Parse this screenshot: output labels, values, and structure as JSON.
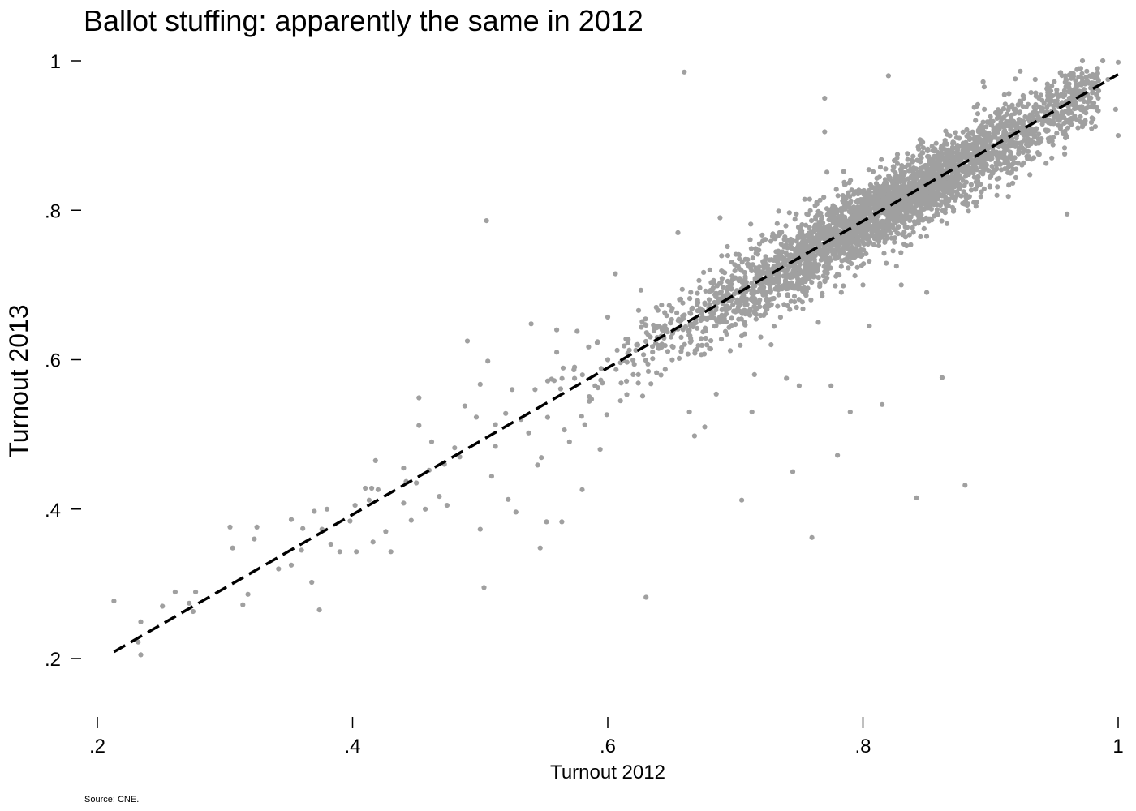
{
  "chart_data": {
    "type": "scatter",
    "title": "Ballot stuffing: apparently the same in 2012",
    "xlabel": "Turnout 2012",
    "ylabel": "Turnout 2013",
    "source": "Source: CNE.",
    "xlim": [
      0.2,
      1.0
    ],
    "ylim": [
      0.2,
      1.0
    ],
    "x_ticks": [
      0.2,
      0.4,
      0.6,
      0.8,
      1.0
    ],
    "x_tick_labels": [
      ".2",
      ".4",
      ".6",
      ".8",
      "1"
    ],
    "y_ticks": [
      0.2,
      0.4,
      0.6,
      0.8,
      1.0
    ],
    "y_tick_labels": [
      ".2",
      ".4",
      ".6",
      ".8",
      "1"
    ],
    "grid": false,
    "marker_color": "#a0a0a0",
    "fit_line_color": "#000000",
    "fit_line": {
      "style": "dashed",
      "points": [
        [
          0.213,
          0.209
        ],
        [
          1.0,
          0.982
        ]
      ]
    },
    "cloud": {
      "description": "dense main cloud along the diagonal; points concentrated around x 0.65–0.95",
      "slope": 0.98,
      "intercept": 0.0,
      "noise_sd": 0.025,
      "count": 3400,
      "x_center": 0.82,
      "x_spread": 0.085
    },
    "points": [
      [
        0.213,
        0.277
      ],
      [
        0.232,
        0.222
      ],
      [
        0.234,
        0.249
      ],
      [
        0.234,
        0.205
      ],
      [
        0.251,
        0.27
      ],
      [
        0.261,
        0.289
      ],
      [
        0.272,
        0.274
      ],
      [
        0.275,
        0.263
      ],
      [
        0.277,
        0.289
      ],
      [
        0.304,
        0.376
      ],
      [
        0.306,
        0.348
      ],
      [
        0.314,
        0.272
      ],
      [
        0.318,
        0.286
      ],
      [
        0.323,
        0.36
      ],
      [
        0.325,
        0.376
      ],
      [
        0.342,
        0.32
      ],
      [
        0.352,
        0.386
      ],
      [
        0.352,
        0.325
      ],
      [
        0.36,
        0.345
      ],
      [
        0.361,
        0.374
      ],
      [
        0.368,
        0.302
      ],
      [
        0.37,
        0.397
      ],
      [
        0.374,
        0.265
      ],
      [
        0.376,
        0.373
      ],
      [
        0.38,
        0.4
      ],
      [
        0.383,
        0.353
      ],
      [
        0.39,
        0.343
      ],
      [
        0.398,
        0.384
      ],
      [
        0.402,
        0.405
      ],
      [
        0.403,
        0.343
      ],
      [
        0.41,
        0.428
      ],
      [
        0.413,
        0.412
      ],
      [
        0.415,
        0.428
      ],
      [
        0.416,
        0.356
      ],
      [
        0.418,
        0.465
      ],
      [
        0.42,
        0.426
      ],
      [
        0.426,
        0.37
      ],
      [
        0.43,
        0.343
      ],
      [
        0.44,
        0.455
      ],
      [
        0.44,
        0.408
      ],
      [
        0.442,
        0.437
      ],
      [
        0.446,
        0.385
      ],
      [
        0.45,
        0.435
      ],
      [
        0.452,
        0.512
      ],
      [
        0.452,
        0.549
      ],
      [
        0.457,
        0.4
      ],
      [
        0.46,
        0.452
      ],
      [
        0.462,
        0.49
      ],
      [
        0.468,
        0.417
      ],
      [
        0.472,
        0.46
      ],
      [
        0.474,
        0.405
      ],
      [
        0.48,
        0.482
      ],
      [
        0.484,
        0.47
      ],
      [
        0.488,
        0.538
      ],
      [
        0.49,
        0.625
      ],
      [
        0.497,
        0.523
      ],
      [
        0.5,
        0.567
      ],
      [
        0.5,
        0.373
      ],
      [
        0.503,
        0.295
      ],
      [
        0.505,
        0.786
      ],
      [
        0.506,
        0.598
      ],
      [
        0.509,
        0.444
      ],
      [
        0.512,
        0.484
      ],
      [
        0.512,
        0.513
      ],
      [
        0.52,
        0.528
      ],
      [
        0.522,
        0.413
      ],
      [
        0.525,
        0.56
      ],
      [
        0.528,
        0.396
      ],
      [
        0.532,
        0.52
      ],
      [
        0.538,
        0.502
      ],
      [
        0.54,
        0.648
      ],
      [
        0.543,
        0.56
      ],
      [
        0.545,
        0.459
      ],
      [
        0.547,
        0.348
      ],
      [
        0.548,
        0.469
      ],
      [
        0.552,
        0.383
      ],
      [
        0.556,
        0.574
      ],
      [
        0.558,
        0.572
      ],
      [
        0.56,
        0.61
      ],
      [
        0.56,
        0.64
      ],
      [
        0.564,
        0.383
      ],
      [
        0.566,
        0.506
      ],
      [
        0.57,
        0.49
      ],
      [
        0.574,
        0.59
      ],
      [
        0.576,
        0.638
      ],
      [
        0.58,
        0.426
      ],
      [
        0.582,
        0.513
      ],
      [
        0.585,
        0.617
      ],
      [
        0.59,
        0.565
      ],
      [
        0.592,
        0.624
      ],
      [
        0.594,
        0.48
      ],
      [
        0.6,
        0.657
      ],
      [
        0.6,
        0.6
      ],
      [
        0.606,
        0.715
      ],
      [
        0.61,
        0.545
      ],
      [
        0.616,
        0.627
      ],
      [
        0.62,
        0.58
      ],
      [
        0.624,
        0.58
      ],
      [
        0.626,
        0.693
      ],
      [
        0.63,
        0.282
      ],
      [
        0.638,
        0.67
      ],
      [
        0.645,
        0.587
      ],
      [
        0.652,
        0.64
      ],
      [
        0.655,
        0.77
      ],
      [
        0.66,
        0.985
      ],
      [
        0.664,
        0.53
      ],
      [
        0.668,
        0.498
      ],
      [
        0.676,
        0.51
      ],
      [
        0.68,
        0.72
      ],
      [
        0.685,
        0.554
      ],
      [
        0.688,
        0.79
      ],
      [
        0.696,
        0.612
      ],
      [
        0.703,
        0.74
      ],
      [
        0.705,
        0.412
      ],
      [
        0.713,
        0.53
      ],
      [
        0.715,
        0.58
      ],
      [
        0.728,
        0.62
      ],
      [
        0.74,
        0.575
      ],
      [
        0.745,
        0.45
      ],
      [
        0.748,
        0.67
      ],
      [
        0.75,
        0.565
      ],
      [
        0.76,
        0.362
      ],
      [
        0.765,
        0.65
      ],
      [
        0.77,
        0.95
      ],
      [
        0.77,
        0.905
      ],
      [
        0.775,
        0.565
      ],
      [
        0.78,
        0.472
      ],
      [
        0.783,
        0.69
      ],
      [
        0.79,
        0.53
      ],
      [
        0.8,
        0.7
      ],
      [
        0.805,
        0.645
      ],
      [
        0.815,
        0.54
      ],
      [
        0.82,
        0.98
      ],
      [
        0.83,
        0.7
      ],
      [
        0.842,
        0.415
      ],
      [
        0.85,
        0.69
      ],
      [
        0.862,
        0.576
      ],
      [
        0.88,
        0.432
      ],
      [
        0.895,
        0.965
      ],
      [
        0.905,
        0.82
      ],
      [
        0.92,
        0.855
      ],
      [
        0.935,
        0.975
      ],
      [
        0.948,
        0.87
      ],
      [
        0.96,
        0.795
      ],
      [
        0.965,
        0.96
      ],
      [
        0.972,
        1.0
      ],
      [
        0.98,
        0.97
      ],
      [
        0.988,
        1.0
      ],
      [
        0.992,
        0.975
      ],
      [
        1.0,
        0.998
      ],
      [
        1.0,
        0.9
      ],
      [
        0.998,
        0.935
      ]
    ]
  }
}
